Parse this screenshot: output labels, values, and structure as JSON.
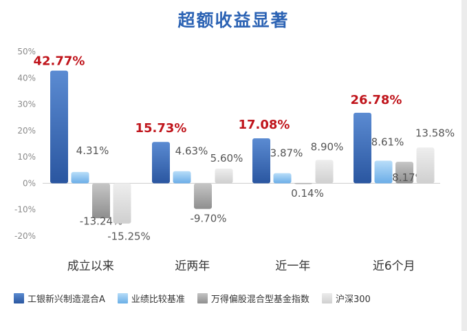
{
  "chart_data": {
    "type": "bar",
    "title": "超额收益显著",
    "categories": [
      "成立以来",
      "近两年",
      "近一年",
      "近6个月"
    ],
    "series": [
      {
        "name": "工银新兴制造混合A",
        "values": [
          42.77,
          15.73,
          17.08,
          26.78
        ],
        "labels": [
          "42.77%",
          "15.73%",
          "17.08%",
          "26.78%"
        ]
      },
      {
        "name": "业绩比较基准",
        "values": [
          4.31,
          4.63,
          3.87,
          8.61
        ],
        "labels": [
          "4.31%",
          "4.63%",
          "3.87%",
          "8.61%"
        ]
      },
      {
        "name": "万得偏股混合型基金指数",
        "values": [
          -13.24,
          -9.7,
          0.14,
          8.17
        ],
        "labels": [
          "-13.24%",
          "-9.70%",
          "0.14%",
          "8.17%"
        ]
      },
      {
        "name": "沪深300",
        "values": [
          -15.25,
          5.6,
          8.9,
          13.58
        ],
        "labels": [
          "-15.25%",
          "5.60%",
          "8.90%",
          "13.58%"
        ]
      }
    ],
    "y_ticks": [
      "50%",
      "40%",
      "30%",
      "20%",
      "10%",
      "0%",
      "-10%",
      "-20%"
    ],
    "ylim": [
      -20,
      50
    ],
    "colors": [
      "#3a68b0",
      "#8cc3ee",
      "#a6a6a6",
      "#d9d9d9"
    ],
    "legend_position": "bottom",
    "grid": false
  }
}
